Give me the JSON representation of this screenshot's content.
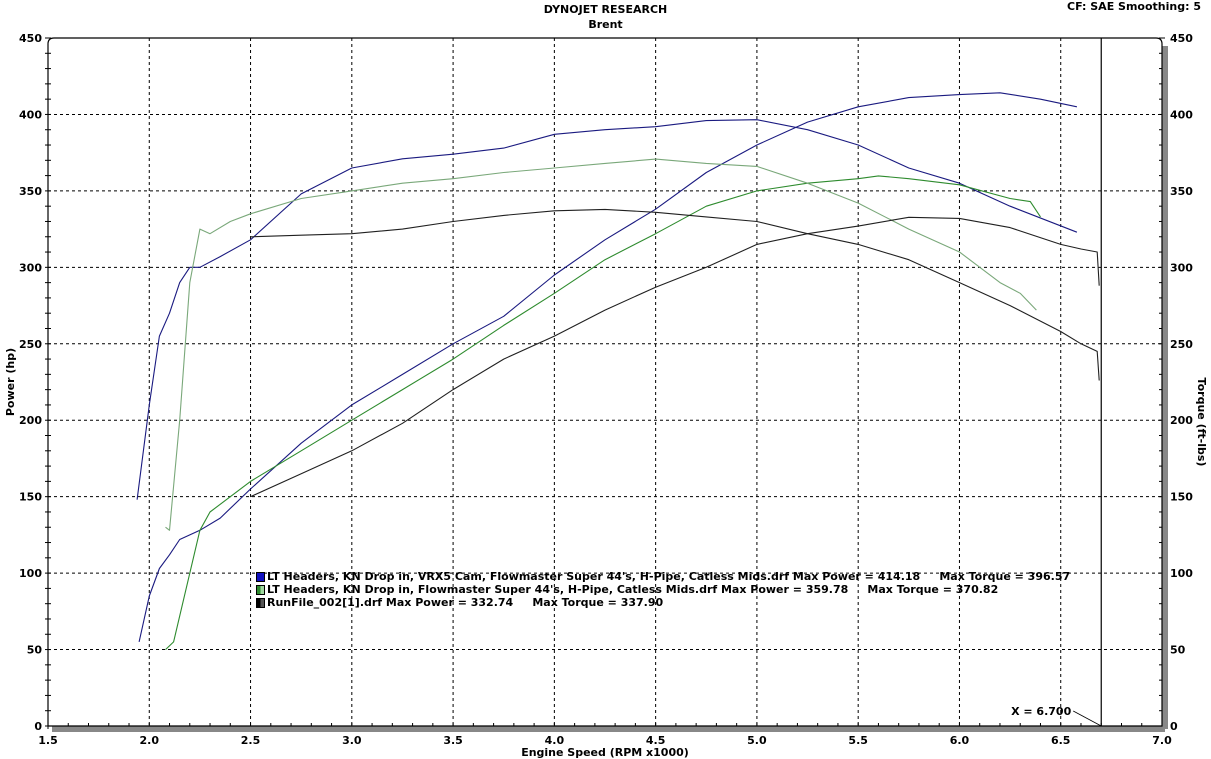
{
  "header": {
    "title": "DYNOJET RESEARCH",
    "subtitle": "Brent",
    "settings": "CF: SAE  Smoothing: 5"
  },
  "axes": {
    "xlabel": "Engine Speed (RPM x1000)",
    "ylabel_left": "Power (hp)",
    "ylabel_right": "Torque (ft-lbs)",
    "x_ticks": [
      "1.5",
      "2.0",
      "2.5",
      "3.0",
      "3.5",
      "4.0",
      "4.5",
      "5.0",
      "5.5",
      "6.0",
      "6.5",
      "7.0"
    ],
    "y_ticks": [
      "0",
      "50",
      "100",
      "150",
      "200",
      "250",
      "300",
      "350",
      "400",
      "450"
    ]
  },
  "cursor": {
    "label": "X = 6.700",
    "x": 6.7
  },
  "legend": [
    {
      "text": "LT Headers, KN Drop in, VRX5 Cam, Flowmaster Super 44's, H-Pipe, Catless Mids.drf Max Power = 414.18     Max Torque = 396.57",
      "color": "#0000b0"
    },
    {
      "text": "LT Headers, KN Drop in, Flowmaster Super 44's, H-Pipe, Catless Mids.drf Max Power = 359.78     Max Torque = 370.82",
      "color": "#2e8b2e"
    },
    {
      "text": "RunFile_002[1].drf Max Power = 332.74     Max Torque = 337.90",
      "color": "#202020"
    }
  ],
  "chart_data": {
    "type": "line",
    "title": "DYNOJET RESEARCH",
    "subtitle": "Brent",
    "xlabel": "Engine Speed (RPM x1000)",
    "ylabel": "Power (hp)",
    "ylabel_right": "Torque (ft-lbs)",
    "xlim": [
      1.5,
      7.0
    ],
    "ylim": [
      0,
      450
    ],
    "grid": true,
    "legend_position": "lower-left inside",
    "series": [
      {
        "name": "VRX5 Cam - Power (hp)",
        "color": "#1a1a80",
        "points": [
          [
            1.95,
            55
          ],
          [
            2.0,
            85
          ],
          [
            2.05,
            103
          ],
          [
            2.1,
            112
          ],
          [
            2.15,
            122
          ],
          [
            2.25,
            128
          ],
          [
            2.35,
            136
          ],
          [
            2.5,
            155
          ],
          [
            2.75,
            185
          ],
          [
            3.0,
            210
          ],
          [
            3.25,
            230
          ],
          [
            3.5,
            250
          ],
          [
            3.75,
            268
          ],
          [
            4.0,
            295
          ],
          [
            4.25,
            318
          ],
          [
            4.5,
            338
          ],
          [
            4.75,
            362
          ],
          [
            5.0,
            380
          ],
          [
            5.25,
            395
          ],
          [
            5.5,
            405
          ],
          [
            5.75,
            411
          ],
          [
            6.0,
            413
          ],
          [
            6.2,
            414.18
          ],
          [
            6.4,
            410
          ],
          [
            6.58,
            405
          ]
        ]
      },
      {
        "name": "VRX5 Cam - Torque (ft-lbs)",
        "color": "#1a1a80",
        "points": [
          [
            1.94,
            148
          ],
          [
            2.0,
            210
          ],
          [
            2.05,
            255
          ],
          [
            2.1,
            270
          ],
          [
            2.15,
            290
          ],
          [
            2.2,
            300
          ],
          [
            2.25,
            300
          ],
          [
            2.35,
            307
          ],
          [
            2.5,
            318
          ],
          [
            2.75,
            348
          ],
          [
            3.0,
            365
          ],
          [
            3.25,
            371
          ],
          [
            3.5,
            374
          ],
          [
            3.75,
            378
          ],
          [
            4.0,
            387
          ],
          [
            4.25,
            390
          ],
          [
            4.5,
            392
          ],
          [
            4.75,
            396
          ],
          [
            5.0,
            396.57
          ],
          [
            5.25,
            390
          ],
          [
            5.5,
            380
          ],
          [
            5.75,
            365
          ],
          [
            6.0,
            355
          ],
          [
            6.25,
            340
          ],
          [
            6.58,
            323
          ]
        ]
      },
      {
        "name": "Flowmaster - Power (hp)",
        "color": "#2e8b2e",
        "points": [
          [
            2.08,
            50
          ],
          [
            2.12,
            55
          ],
          [
            2.2,
            100
          ],
          [
            2.25,
            128
          ],
          [
            2.3,
            140
          ],
          [
            2.4,
            150
          ],
          [
            2.5,
            160
          ],
          [
            2.75,
            180
          ],
          [
            3.0,
            200
          ],
          [
            3.25,
            220
          ],
          [
            3.5,
            240
          ],
          [
            3.75,
            262
          ],
          [
            4.0,
            283
          ],
          [
            4.25,
            305
          ],
          [
            4.5,
            322
          ],
          [
            4.75,
            340
          ],
          [
            5.0,
            350
          ],
          [
            5.25,
            355
          ],
          [
            5.5,
            358
          ],
          [
            5.6,
            359.78
          ],
          [
            5.75,
            358
          ],
          [
            6.0,
            354
          ],
          [
            6.25,
            345
          ],
          [
            6.35,
            343
          ],
          [
            6.4,
            333
          ]
        ]
      },
      {
        "name": "Flowmaster - Torque (ft-lbs)",
        "color": "#7aa87a",
        "points": [
          [
            2.08,
            130
          ],
          [
            2.1,
            128
          ],
          [
            2.15,
            200
          ],
          [
            2.2,
            290
          ],
          [
            2.25,
            325
          ],
          [
            2.3,
            322
          ],
          [
            2.4,
            330
          ],
          [
            2.5,
            335
          ],
          [
            2.75,
            345
          ],
          [
            3.0,
            350
          ],
          [
            3.25,
            355
          ],
          [
            3.5,
            358
          ],
          [
            3.75,
            362
          ],
          [
            4.0,
            365
          ],
          [
            4.25,
            368
          ],
          [
            4.5,
            370.82
          ],
          [
            4.75,
            368
          ],
          [
            5.0,
            366
          ],
          [
            5.25,
            355
          ],
          [
            5.5,
            342
          ],
          [
            5.75,
            325
          ],
          [
            6.0,
            310
          ],
          [
            6.2,
            290
          ],
          [
            6.3,
            283
          ],
          [
            6.38,
            272
          ]
        ]
      },
      {
        "name": "RunFile_002 - Power (hp)",
        "color": "#202020",
        "points": [
          [
            2.5,
            150
          ],
          [
            2.75,
            165
          ],
          [
            3.0,
            180
          ],
          [
            3.25,
            198
          ],
          [
            3.5,
            220
          ],
          [
            3.75,
            240
          ],
          [
            4.0,
            255
          ],
          [
            4.25,
            272
          ],
          [
            4.5,
            287
          ],
          [
            4.75,
            300
          ],
          [
            5.0,
            315
          ],
          [
            5.25,
            322
          ],
          [
            5.5,
            327
          ],
          [
            5.75,
            332.74
          ],
          [
            6.0,
            332
          ],
          [
            6.25,
            326
          ],
          [
            6.5,
            315
          ],
          [
            6.6,
            312
          ],
          [
            6.68,
            310
          ],
          [
            6.69,
            288
          ]
        ]
      },
      {
        "name": "RunFile_002 - Torque (ft-lbs)",
        "color": "#202020",
        "points": [
          [
            2.5,
            320
          ],
          [
            2.75,
            321
          ],
          [
            3.0,
            322
          ],
          [
            3.25,
            325
          ],
          [
            3.5,
            330
          ],
          [
            3.75,
            334
          ],
          [
            4.0,
            337
          ],
          [
            4.25,
            337.9
          ],
          [
            4.5,
            336
          ],
          [
            4.75,
            333
          ],
          [
            5.0,
            330
          ],
          [
            5.25,
            322
          ],
          [
            5.5,
            315
          ],
          [
            5.75,
            305
          ],
          [
            6.0,
            290
          ],
          [
            6.25,
            275
          ],
          [
            6.5,
            258
          ],
          [
            6.6,
            250
          ],
          [
            6.68,
            245
          ],
          [
            6.69,
            226
          ]
        ]
      }
    ]
  }
}
